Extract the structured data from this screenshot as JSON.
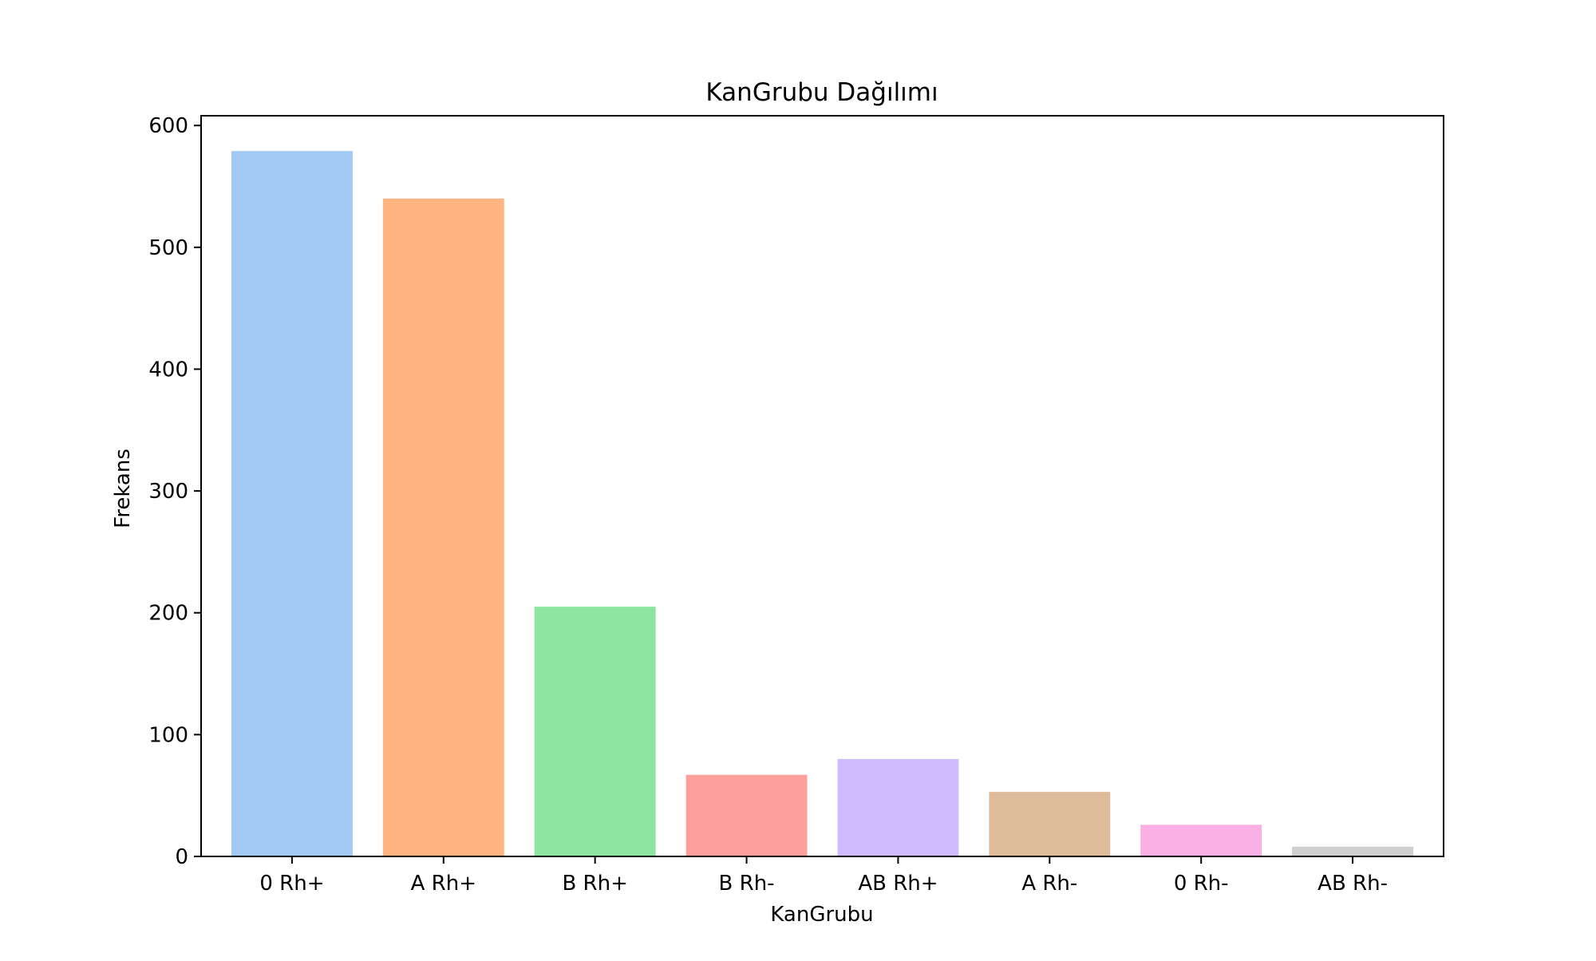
{
  "chart_data": {
    "type": "bar",
    "title": "KanGrubu Dağılımı",
    "xlabel": "KanGrubu",
    "ylabel": "Frekans",
    "categories": [
      "0 Rh+",
      "A Rh+",
      "B Rh+",
      "B Rh-",
      "AB Rh+",
      "A Rh-",
      "0 Rh-",
      "AB Rh-"
    ],
    "values": [
      579,
      540,
      205,
      67,
      80,
      53,
      26,
      8
    ],
    "colors": [
      "#a1c9f4",
      "#ffb482",
      "#8de5a1",
      "#ff9f9b",
      "#d0bbff",
      "#debb9b",
      "#fab0e4",
      "#cfcfcf"
    ],
    "ylim": [
      0,
      608
    ],
    "yticks": [
      0,
      100,
      200,
      300,
      400,
      500,
      600
    ],
    "grid": false,
    "legend": "none"
  }
}
